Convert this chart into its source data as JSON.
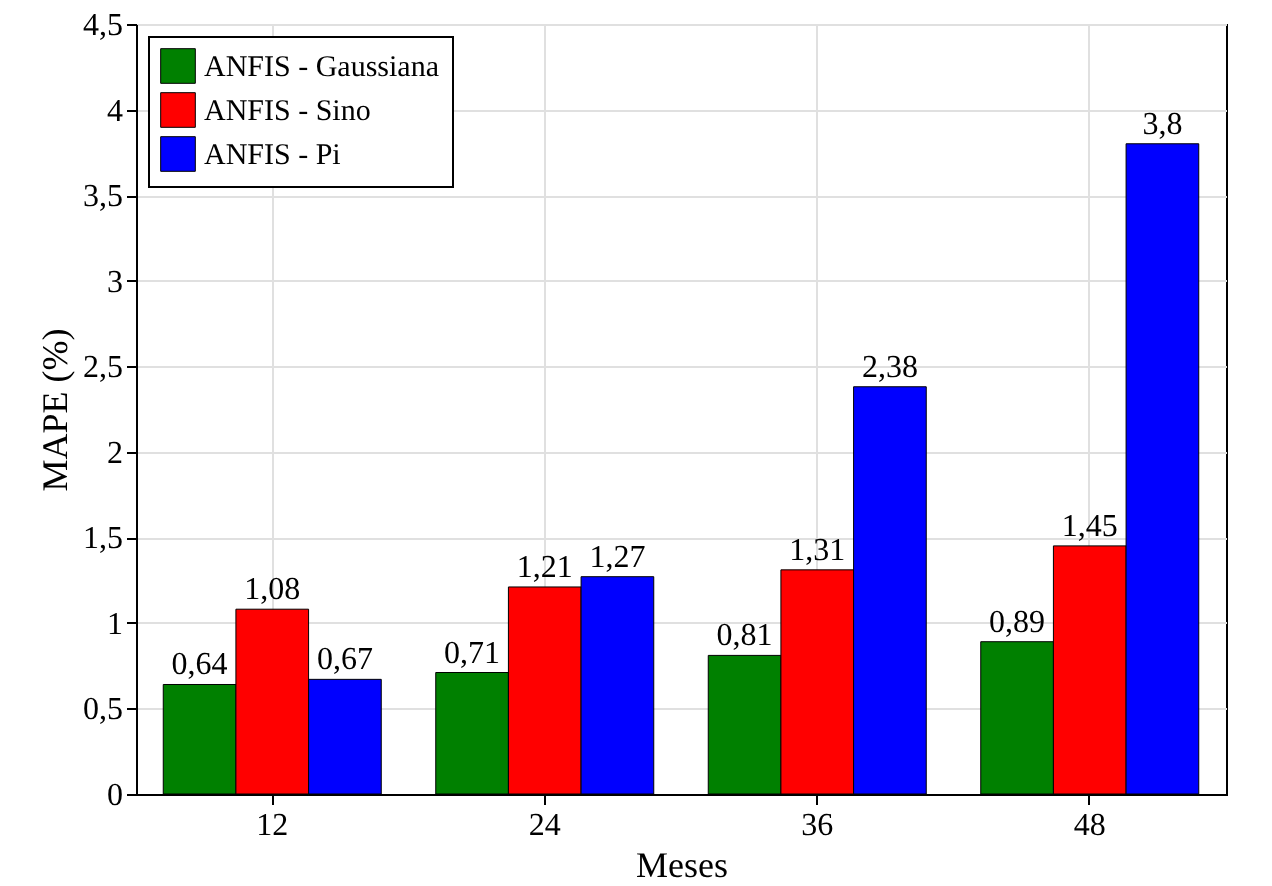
{
  "chart_data": {
    "type": "bar",
    "xlabel": "Meses",
    "ylabel": "MAPE (%)",
    "categories": [
      "12",
      "24",
      "36",
      "48"
    ],
    "series": [
      {
        "name": "ANFIS - Gaussiana",
        "color": "#008000",
        "values": [
          0.64,
          0.71,
          0.81,
          0.89
        ],
        "value_labels": [
          "0,64",
          "0,71",
          "0,81",
          "0,89"
        ]
      },
      {
        "name": "ANFIS - Sino",
        "color": "#ff0000",
        "values": [
          1.08,
          1.21,
          1.31,
          1.45
        ],
        "value_labels": [
          "1,08",
          "1,21",
          "1,31",
          "1,45"
        ]
      },
      {
        "name": "ANFIS - Pi",
        "color": "#0000ff",
        "values": [
          0.67,
          1.27,
          2.38,
          3.8
        ],
        "value_labels": [
          "0,67",
          "1,27",
          "2,38",
          "3,8"
        ]
      }
    ],
    "ylim": [
      0,
      4.5
    ],
    "yticks": [
      0,
      {
        "value": 0.5,
        "label": "0,5"
      },
      1,
      {
        "value": 1.5,
        "label": "1,5"
      },
      2,
      {
        "value": 2.5,
        "label": "2,5"
      },
      3,
      {
        "value": 3.5,
        "label": "3,5"
      },
      4,
      {
        "value": 4.5,
        "label": "4,5"
      }
    ],
    "grid": true,
    "legend": "top left"
  }
}
